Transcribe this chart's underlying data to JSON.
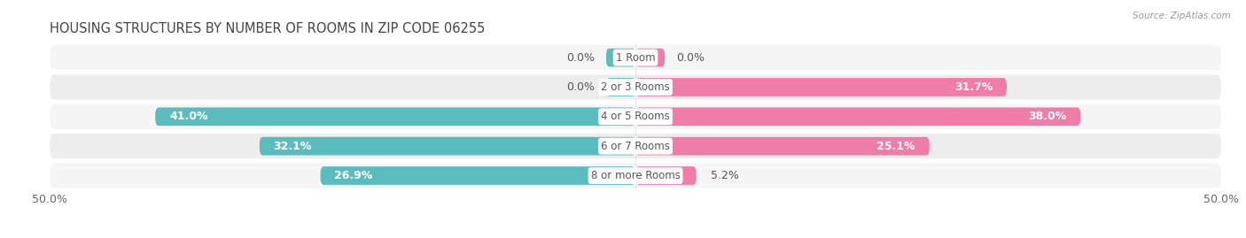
{
  "title": "HOUSING STRUCTURES BY NUMBER OF ROOMS IN ZIP CODE 06255",
  "source": "Source: ZipAtlas.com",
  "categories": [
    "1 Room",
    "2 or 3 Rooms",
    "4 or 5 Rooms",
    "6 or 7 Rooms",
    "8 or more Rooms"
  ],
  "owner_values": [
    0.0,
    0.0,
    41.0,
    32.1,
    26.9
  ],
  "renter_values": [
    0.0,
    31.7,
    38.0,
    25.1,
    5.2
  ],
  "owner_color": "#5bbcbe",
  "renter_color": "#f07ca8",
  "row_bg_light": "#f5f5f5",
  "row_bg_dark": "#ededee",
  "x_min": -50.0,
  "x_max": 50.0,
  "label_fontsize": 9,
  "title_fontsize": 10.5,
  "legend_fontsize": 9,
  "bar_height": 0.62,
  "category_label_fontsize": 8.5,
  "value_label_color_inside": "white",
  "value_label_color_outside": "#555555"
}
